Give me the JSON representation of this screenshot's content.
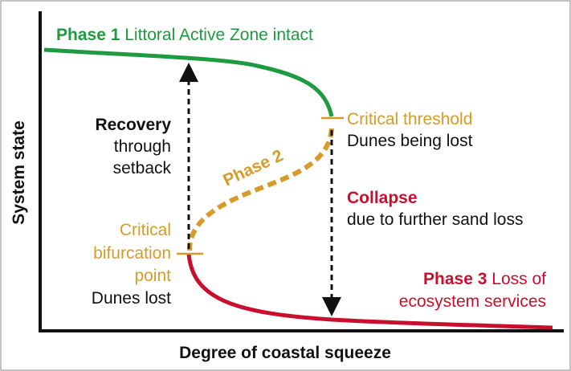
{
  "axes": {
    "y_label": "System state",
    "x_label": "Degree of coastal squeeze"
  },
  "phase1": {
    "name": "Phase 1",
    "text": "Littoral Active Zone intact"
  },
  "phase2": {
    "name": "Phase 2"
  },
  "phase3": {
    "name": "Phase 3",
    "lines": [
      "Loss of",
      "ecosystem services"
    ]
  },
  "recovery": {
    "title": "Recovery",
    "lines": [
      "through",
      "setback"
    ]
  },
  "critical_threshold": {
    "label": "Critical threshold",
    "note": "Dunes being lost"
  },
  "collapse": {
    "title": "Collapse",
    "note": "due to further sand loss"
  },
  "bifurcation": {
    "lines": [
      "Critical",
      "bifurcation",
      "point"
    ],
    "note": "Dunes lost"
  }
}
